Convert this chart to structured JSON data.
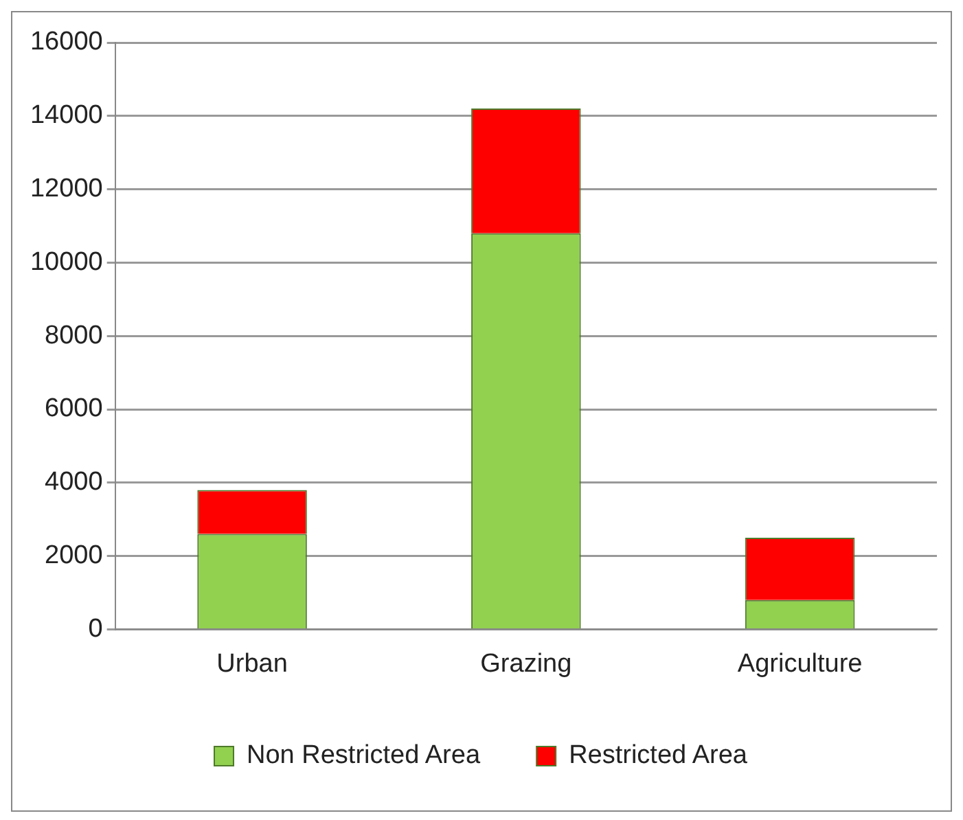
{
  "chart_data": {
    "type": "bar",
    "stacked": true,
    "categories": [
      "Urban",
      "Grazing",
      "Agriculture"
    ],
    "series": [
      {
        "name": "Non Restricted Area",
        "color": "#92d050",
        "values": [
          2600,
          10800,
          800
        ]
      },
      {
        "name": "Restricted Area",
        "color": "#ff0000",
        "values": [
          1200,
          3400,
          1700
        ]
      }
    ],
    "ylim": [
      0,
      16000
    ],
    "yticks": [
      0,
      2000,
      4000,
      6000,
      8000,
      10000,
      12000,
      14000,
      16000
    ],
    "grid": "y",
    "legend": "bottom"
  }
}
